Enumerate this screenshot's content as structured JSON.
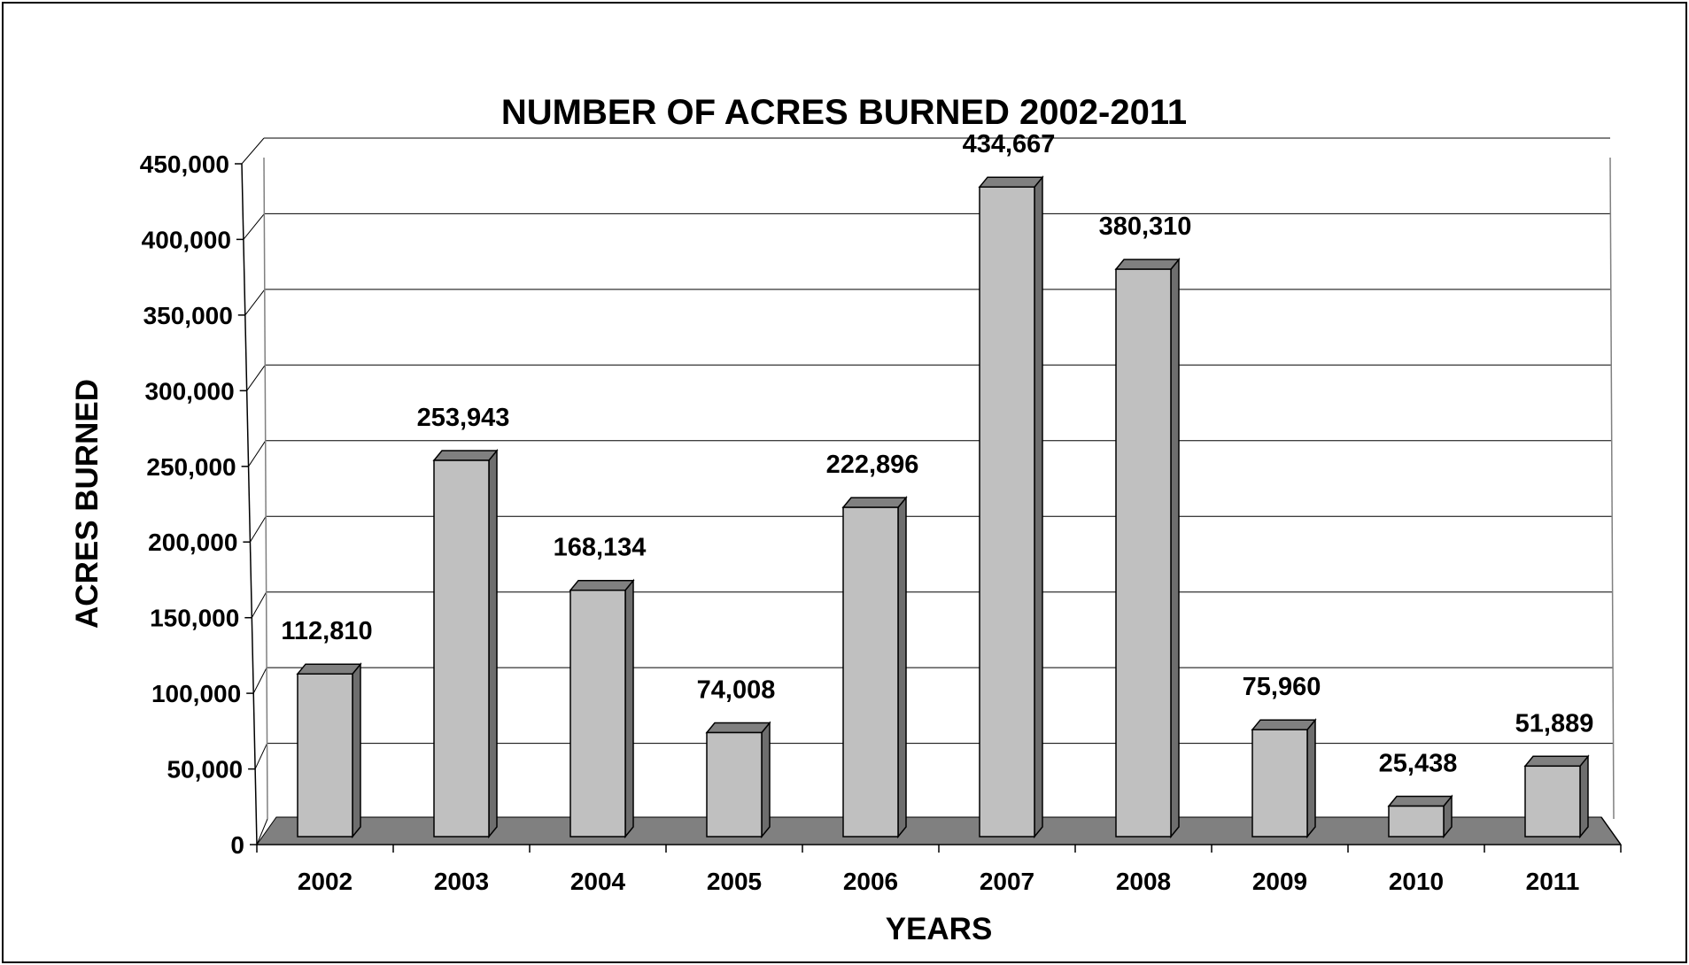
{
  "chart_data": {
    "type": "bar",
    "title": "NUMBER OF ACRES BURNED 2002-2011",
    "xlabel": "YEARS",
    "ylabel": "ACRES BURNED",
    "categories": [
      "2002",
      "2003",
      "2004",
      "2005",
      "2006",
      "2007",
      "2008",
      "2009",
      "2010",
      "2011"
    ],
    "values": [
      112810,
      253943,
      168134,
      74008,
      222896,
      434667,
      380310,
      75960,
      25438,
      51889
    ],
    "value_labels": [
      "112,810",
      "253,943",
      "168,134",
      "74,008",
      "222,896",
      "434,667",
      "380,310",
      "75,960",
      "25,438",
      "51,889"
    ],
    "ylim": [
      0,
      450000
    ],
    "yticks": [
      0,
      50000,
      100000,
      150000,
      200000,
      250000,
      300000,
      350000,
      400000,
      450000
    ],
    "ytick_labels": [
      "0",
      "50,000",
      "100,000",
      "150,000",
      "200,000",
      "250,000",
      "300,000",
      "350,000",
      "400,000",
      "450,000"
    ],
    "grid": true,
    "legend": false,
    "style": "3d-column",
    "colors": {
      "bar_front": "#c0c0c0",
      "bar_top": "#808080",
      "bar_side": "#6e6e6e",
      "floor": "#808080",
      "gridline": "#000000",
      "wall": "#ffffff",
      "outline": "#000000"
    }
  }
}
